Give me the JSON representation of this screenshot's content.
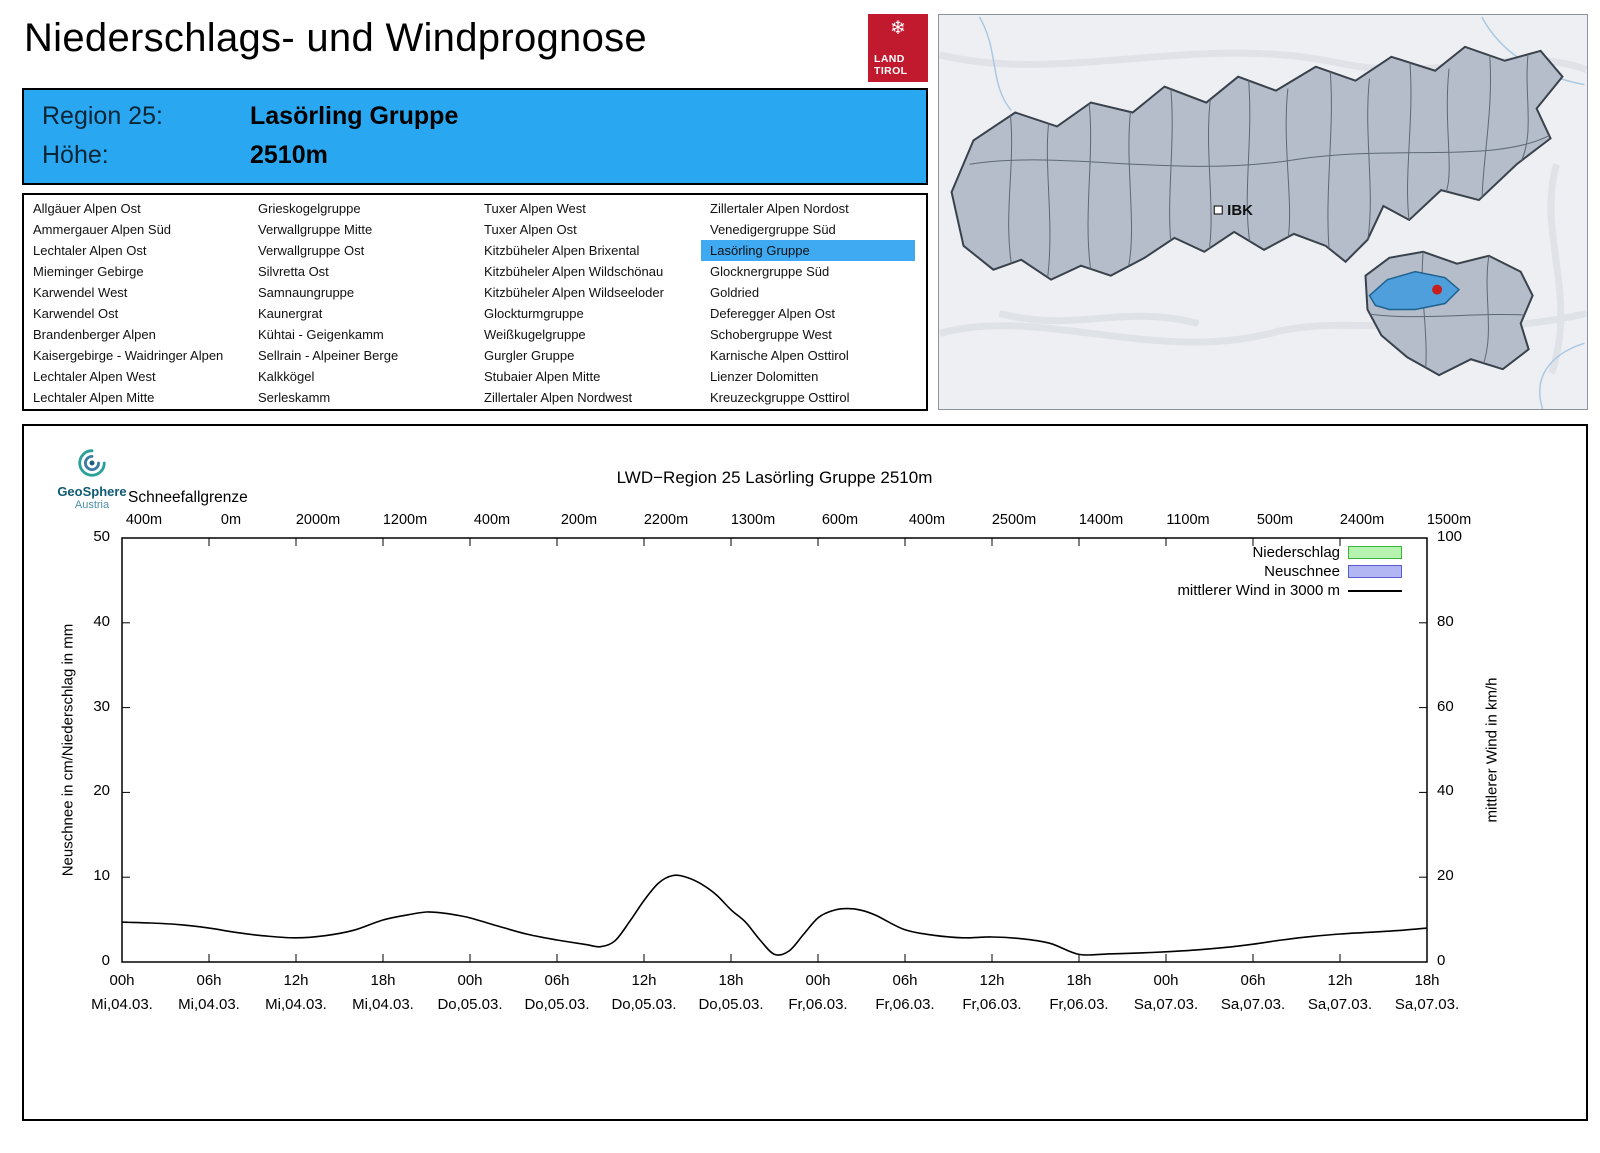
{
  "page": {
    "title": "Niederschlags- und Windprognose"
  },
  "logo": {
    "line1": "LAND",
    "line2": "TIROL",
    "background": "#c11a2e"
  },
  "map": {
    "city_label": "IBK",
    "selected_region_color": "#4f9fdd",
    "marker_color": "#c81e1e"
  },
  "header": {
    "region_label": "Region 25:",
    "region_value": "Lasörling Gruppe",
    "altitude_label": "Höhe:",
    "altitude_value": "2510m",
    "background": "#29a7f0"
  },
  "regions": {
    "selected": "Lasörling Gruppe",
    "columns": [
      [
        "Allgäuer Alpen Ost",
        "Ammergauer Alpen Süd",
        "Lechtaler Alpen Ost",
        "Mieminger Gebirge",
        "Karwendel West",
        "Karwendel Ost",
        "Brandenberger Alpen",
        "Kaisergebirge - Waidringer Alpen",
        "Lechtaler Alpen West",
        "Lechtaler Alpen Mitte"
      ],
      [
        "Grieskogelgruppe",
        "Verwallgruppe Mitte",
        "Verwallgruppe Ost",
        "Silvretta Ost",
        "Samnaungruppe",
        "Kaunergrat",
        "Kühtai - Geigenkamm",
        "Sellrain - Alpeiner Berge",
        "Kalkkögel",
        "Serleskamm"
      ],
      [
        "Tuxer Alpen West",
        "Tuxer Alpen Ost",
        "Kitzbüheler Alpen Brixental",
        "Kitzbüheler Alpen Wildschönau",
        "Kitzbüheler Alpen Wildseeloder",
        "Glockturmgruppe",
        "Weißkugelgruppe",
        "Gurgler Gruppe",
        "Stubaier Alpen Mitte",
        "Zillertaler Alpen Nordwest"
      ],
      [
        "Zillertaler Alpen Nordost",
        "Venedigergruppe Süd",
        "Lasörling Gruppe",
        "Glocknergruppe Süd",
        "Goldried",
        "Deferegger Alpen Ost",
        "Schobergruppe West",
        "Karnische Alpen Osttirol",
        "Lienzer Dolomitten",
        "Kreuzeckgruppe Osttirol"
      ]
    ]
  },
  "chart": {
    "brand": {
      "name": "GeoSphere",
      "sub": "Austria"
    },
    "title": "LWD−Region 25 Lasörling Gruppe 2510m",
    "snowline_label": "Schneefallgrenze",
    "ylabel_left": "Neuschnee in cm/Niederschlag in mm",
    "ylabel_right": "mittlerer Wind in km/h",
    "legend": [
      {
        "label": "Niederschlag",
        "swatch": "box",
        "fill": "#b7f3b0",
        "stroke": "#3cb43c"
      },
      {
        "label": "Neuschnee",
        "swatch": "box",
        "fill": "#b2b6f2",
        "stroke": "#5a5ad2"
      },
      {
        "label": "mittlerer Wind in 3000 m",
        "swatch": "line",
        "stroke": "#000000"
      }
    ]
  },
  "chart_data": {
    "type": "line",
    "title": "LWD−Region 25 Lasörling Gruppe 2510m",
    "x_ticks": [
      {
        "time": "00h",
        "date": "Mi,04.03."
      },
      {
        "time": "06h",
        "date": "Mi,04.03."
      },
      {
        "time": "12h",
        "date": "Mi,04.03."
      },
      {
        "time": "18h",
        "date": "Mi,04.03."
      },
      {
        "time": "00h",
        "date": "Do,05.03."
      },
      {
        "time": "06h",
        "date": "Do,05.03."
      },
      {
        "time": "12h",
        "date": "Do,05.03."
      },
      {
        "time": "18h",
        "date": "Do,05.03."
      },
      {
        "time": "00h",
        "date": "Fr,06.03."
      },
      {
        "time": "06h",
        "date": "Fr,06.03."
      },
      {
        "time": "12h",
        "date": "Fr,06.03."
      },
      {
        "time": "18h",
        "date": "Fr,06.03."
      },
      {
        "time": "00h",
        "date": "Sa,07.03."
      },
      {
        "time": "06h",
        "date": "Sa,07.03."
      },
      {
        "time": "12h",
        "date": "Sa,07.03."
      },
      {
        "time": "18h",
        "date": "Sa,07.03."
      }
    ],
    "snowline_label": "Schneefallgrenze",
    "snowline_values": [
      "400m",
      "0m",
      "2000m",
      "1200m",
      "400m",
      "200m",
      "2200m",
      "1300m",
      "600m",
      "400m",
      "2500m",
      "1400m",
      "1100m",
      "500m",
      "2400m",
      "1500m"
    ],
    "y_left": {
      "label": "Neuschnee in cm/Niederschlag in mm",
      "range": [
        0,
        50
      ],
      "ticks": [
        0,
        10,
        20,
        30,
        40,
        50
      ]
    },
    "y_right": {
      "label": "mittlerer Wind in km/h",
      "range": [
        0,
        100
      ],
      "ticks": [
        0,
        20,
        40,
        60,
        80,
        100
      ]
    },
    "x_range_hours": [
      0,
      90
    ],
    "grid": false,
    "legend_position": "top-right",
    "series": [
      {
        "name": "Niederschlag",
        "type": "bars",
        "axis": "left",
        "unit": "mm",
        "values": []
      },
      {
        "name": "Neuschnee",
        "type": "bars",
        "axis": "left",
        "unit": "cm",
        "values": []
      },
      {
        "name": "mittlerer Wind in 3000 m",
        "type": "line",
        "axis": "right",
        "unit": "km/h",
        "points_h_kmh": [
          [
            0,
            9.4
          ],
          [
            2,
            9.2
          ],
          [
            4,
            8.8
          ],
          [
            6,
            8.0
          ],
          [
            8,
            6.9
          ],
          [
            10,
            6.1
          ],
          [
            12,
            5.7
          ],
          [
            14,
            6.2
          ],
          [
            16,
            7.5
          ],
          [
            18,
            9.9
          ],
          [
            20,
            11.3
          ],
          [
            21,
            11.8
          ],
          [
            22,
            11.6
          ],
          [
            23,
            11.1
          ],
          [
            24,
            10.4
          ],
          [
            26,
            8.4
          ],
          [
            28,
            6.5
          ],
          [
            30,
            5.2
          ],
          [
            32,
            4.1
          ],
          [
            33,
            3.6
          ],
          [
            34,
            5.0
          ],
          [
            35,
            9.5
          ],
          [
            36,
            14.5
          ],
          [
            37,
            18.6
          ],
          [
            38,
            20.4
          ],
          [
            39,
            19.9
          ],
          [
            40,
            18.3
          ],
          [
            41,
            15.8
          ],
          [
            42,
            12.3
          ],
          [
            43,
            9.4
          ],
          [
            44,
            5.2
          ],
          [
            45,
            1.8
          ],
          [
            46,
            2.6
          ],
          [
            47,
            6.5
          ],
          [
            48,
            10.4
          ],
          [
            49,
            12.1
          ],
          [
            50,
            12.6
          ],
          [
            51,
            12.2
          ],
          [
            52,
            11.0
          ],
          [
            54,
            7.6
          ],
          [
            56,
            6.3
          ],
          [
            58,
            5.7
          ],
          [
            60,
            5.9
          ],
          [
            62,
            5.5
          ],
          [
            64,
            4.4
          ],
          [
            66,
            1.8
          ],
          [
            68,
            1.9
          ],
          [
            70,
            2.1
          ],
          [
            72,
            2.4
          ],
          [
            74,
            2.8
          ],
          [
            76,
            3.4
          ],
          [
            78,
            4.2
          ],
          [
            80,
            5.2
          ],
          [
            82,
            6.0
          ],
          [
            84,
            6.6
          ],
          [
            86,
            7.0
          ],
          [
            88,
            7.4
          ],
          [
            90,
            8.0
          ]
        ]
      }
    ]
  }
}
